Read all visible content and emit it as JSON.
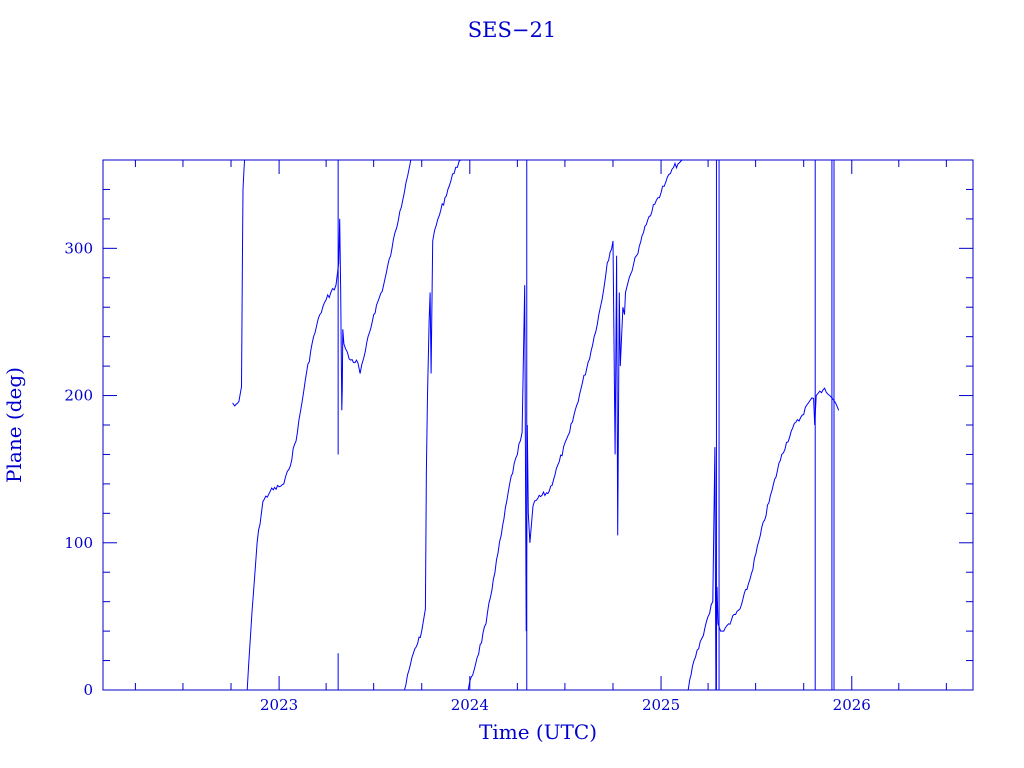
{
  "chart_data": {
    "type": "line",
    "title": "SES−21",
    "xlabel": "Time (UTC)",
    "ylabel": "Plane (deg)",
    "xlim": [
      "2022-01-29",
      "2026-08-21"
    ],
    "ylim": [
      0,
      360
    ],
    "x_ticks": [
      "2023",
      "2024",
      "2025",
      "2026"
    ],
    "y_ticks": [
      "0",
      "100",
      "200",
      "300"
    ],
    "colors": {
      "axes": "#0000cc",
      "line": "#0000ff",
      "background": "#ffffff"
    },
    "grid": false,
    "series": [
      {
        "segments": [
          {
            "x": [
              "2022-10-04",
              "2022-10-08",
              "2022-10-16",
              "2022-10-21",
              "2022-10-23",
              "2022-10-24",
              "2022-10-26",
              "2022-10-27"
            ],
            "y": [
              195,
              193,
              196,
              206,
              300,
              340,
              355,
              360
            ]
          },
          {
            "x": [
              "2022-11-01",
              "2022-11-10",
              "2022-11-20",
              "2022-12-01",
              "2022-12-15",
              "2023-01-01",
              "2023-01-10",
              "2023-01-20",
              "2023-02-05",
              "2023-02-20",
              "2023-03-05",
              "2023-03-20",
              "2023-04-01",
              "2023-04-10",
              "2023-04-20",
              "2023-04-25",
              "2023-04-27",
              "2023-04-29",
              "2023-05-01",
              "2023-05-02",
              "2023-05-03",
              "2023-05-05",
              "2023-05-15",
              "2023-06-01",
              "2023-06-05",
              "2023-06-15",
              "2023-07-01",
              "2023-07-20",
              "2023-08-05",
              "2023-08-20",
              "2023-09-01",
              "2023-09-10"
            ],
            "y": [
              0,
              52,
              100,
              128,
              135,
              138,
              140,
              150,
              175,
              210,
              235,
              255,
              265,
              270,
              275,
              290,
              320,
              270,
              190,
              205,
              245,
              235,
              225,
              222,
              215,
              230,
              255,
              275,
              300,
              325,
              345,
              360
            ]
          },
          {
            "x": [
              "2023-08-29",
              "2023-09-15",
              "2023-10-01",
              "2023-10-08",
              "2023-10-10",
              "2023-10-12",
              "2023-10-15",
              "2023-10-17",
              "2023-10-19",
              "2023-10-22",
              "2023-11-01",
              "2023-11-20",
              "2023-12-05",
              "2023-12-15"
            ],
            "y": [
              0,
              25,
              40,
              55,
              150,
              200,
              250,
              270,
              215,
              305,
              320,
              340,
              355,
              360
            ]
          },
          {
            "x": [
              "2023-12-29",
              "2024-01-15",
              "2024-02-01",
              "2024-02-15",
              "2024-03-01",
              "2024-03-20",
              "2024-04-01",
              "2024-04-10",
              "2024-04-15",
              "2024-04-18",
              "2024-04-20",
              "2024-04-22",
              "2024-04-25",
              "2024-05-01",
              "2024-05-10",
              "2024-06-01",
              "2024-06-20",
              "2024-07-10",
              "2024-08-01",
              "2024-08-20",
              "2024-09-10",
              "2024-09-20",
              "2024-10-01",
              "2024-10-05",
              "2024-10-08",
              "2024-10-10",
              "2024-10-13",
              "2024-10-15",
              "2024-10-20",
              "2024-10-23",
              "2024-10-25",
              "2024-11-01",
              "2024-11-15",
              "2024-12-01",
              "2024-12-20",
              "2025-01-10",
              "2025-01-25",
              "2025-02-05",
              "2025-02-10"
            ],
            "y": [
              0,
              22,
              45,
              75,
              105,
              145,
              160,
              175,
              275,
              40,
              180,
              120,
              100,
              125,
              130,
              135,
              155,
              175,
              205,
              230,
              265,
              290,
              305,
              160,
              295,
              105,
              270,
              220,
              260,
              255,
              270,
              280,
              295,
              315,
              330,
              345,
              355,
              358,
              360
            ]
          },
          {
            "x": [
              "2025-02-22",
              "2025-03-05",
              "2025-03-20",
              "2025-04-01",
              "2025-04-10",
              "2025-04-14",
              "2025-04-16",
              "2025-04-18",
              "2025-04-20",
              "2025-04-25",
              "2025-05-01",
              "2025-05-10",
              "2025-06-01",
              "2025-06-20",
              "2025-07-10",
              "2025-08-01",
              "2025-08-20",
              "2025-09-10",
              "2025-09-25",
              "2025-10-10",
              "2025-10-20",
              "2025-10-22",
              "2025-10-25",
              "2025-11-01",
              "2025-11-10",
              "2025-11-20",
              "2025-11-25",
              "2025-12-01",
              "2025-12-07"
            ],
            "y": [
              0,
              20,
              35,
              50,
              60,
              165,
              0,
              70,
              45,
              40,
              40,
              45,
              55,
              75,
              105,
              135,
              160,
              178,
              185,
              195,
              198,
              180,
              200,
              203,
              205,
              200,
              198,
              195,
              190
            ]
          }
        ]
      }
    ],
    "spikes": [
      {
        "x": "2023-04-24",
        "y": [
          0,
          25
        ]
      },
      {
        "x": "2023-04-24",
        "y": [
          160,
          360
        ]
      },
      {
        "x": "2024-04-19",
        "y": [
          0,
          360
        ]
      },
      {
        "x": "2025-04-17",
        "y": [
          0,
          360
        ]
      },
      {
        "x": "2025-04-22",
        "y": [
          0,
          360
        ]
      },
      {
        "x": "2025-10-23",
        "y": [
          0,
          360
        ]
      },
      {
        "x": "2025-11-24",
        "y": [
          0,
          360
        ]
      },
      {
        "x": "2025-11-28",
        "y": [
          0,
          360
        ]
      }
    ]
  }
}
